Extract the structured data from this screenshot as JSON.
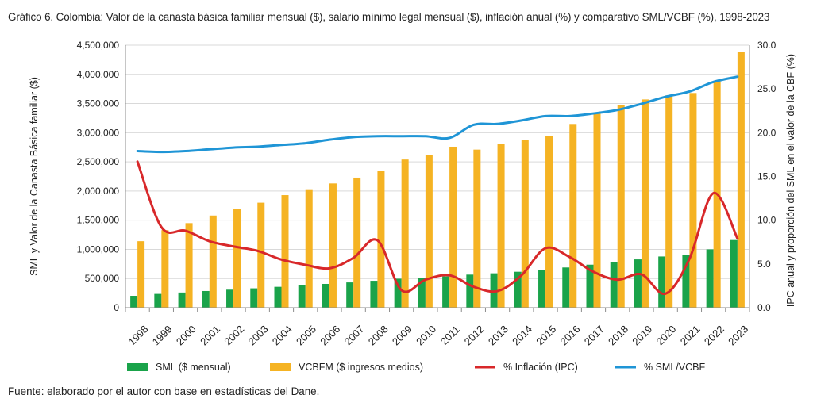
{
  "title": "Gráfico 6. Colombia: Valor de la canasta básica familiar mensual ($), salario mínimo legal mensual ($), inflación anual (%) y comparativo SML/VCBF (%), 1998-2023",
  "source": "Fuente: elaborado por el autor con base en estadísticas del Dane.",
  "chart_data": {
    "type": "bar",
    "title": "Gráfico 6. Colombia: Valor de la canasta básica familiar mensual ($), salario mínimo legal mensual ($), inflación anual (%) y comparativo SML/VCBF (%), 1998-2023",
    "ylabel": "SML y Valor de la Canasta Básica familiar ($)",
    "y2label": "IPC anual y proporción del SML en el valor de la CBF (%)",
    "ylim": [
      0,
      4500000
    ],
    "y2lim": [
      0,
      30
    ],
    "yticks": [
      "0",
      "500,000",
      "1,000,000",
      "1,500,000",
      "2,000,000",
      "2,500,000",
      "3,000,000",
      "3,500,000",
      "4,000,000",
      "4,500,000"
    ],
    "y2ticks": [
      "0.0",
      "5.0",
      "10.0",
      "15.0",
      "20.0",
      "25.0",
      "30.0"
    ],
    "grid": true,
    "legend_position": "bottom",
    "categories": [
      "1998",
      "1999",
      "2000",
      "2001",
      "2002",
      "2003",
      "2004",
      "2005",
      "2006",
      "2007",
      "2008",
      "2009",
      "2010",
      "2011",
      "2012",
      "2013",
      "2014",
      "2015",
      "2016",
      "2017",
      "2018",
      "2019",
      "2020",
      "2021",
      "2022",
      "2023"
    ],
    "series": [
      {
        "name": "SML ($ mensual)",
        "type": "bar",
        "axis": "left",
        "color": "#1aa34a",
        "values": [
          203826,
          236460,
          260100,
          286000,
          309000,
          332000,
          358000,
          381500,
          408000,
          433700,
          461500,
          496900,
          515000,
          535600,
          566700,
          589500,
          616000,
          644350,
          689455,
          737717,
          781242,
          828116,
          877803,
          908526,
          1000000,
          1160000
        ]
      },
      {
        "name": "VCBFM ($ ingresos medios)",
        "type": "bar",
        "axis": "left",
        "color": "#f5b323",
        "values": [
          1140000,
          1330000,
          1450000,
          1580000,
          1690000,
          1800000,
          1930000,
          2030000,
          2130000,
          2230000,
          2350000,
          2540000,
          2620000,
          2760000,
          2710000,
          2810000,
          2880000,
          2950000,
          3150000,
          3330000,
          3470000,
          3570000,
          3640000,
          3680000,
          3880000,
          4390000
        ]
      },
      {
        "name": "% Inflación (IPC)",
        "type": "line",
        "axis": "right",
        "color": "#d8282a",
        "values": [
          16.7,
          9.2,
          8.8,
          7.6,
          7.0,
          6.5,
          5.5,
          4.9,
          4.5,
          5.7,
          7.7,
          2.0,
          3.2,
          3.7,
          2.4,
          1.9,
          3.7,
          6.8,
          5.8,
          4.1,
          3.2,
          3.8,
          1.6,
          5.6,
          13.1,
          7.9
        ]
      },
      {
        "name": "% SML/VCBF",
        "type": "line",
        "axis": "right",
        "color": "#1f95d6",
        "values": [
          17.9,
          17.8,
          17.9,
          18.1,
          18.3,
          18.4,
          18.6,
          18.8,
          19.2,
          19.5,
          19.6,
          19.6,
          19.6,
          19.4,
          20.9,
          21.0,
          21.4,
          21.9,
          21.9,
          22.2,
          22.6,
          23.3,
          24.1,
          24.7,
          25.8,
          26.4
        ]
      }
    ]
  }
}
